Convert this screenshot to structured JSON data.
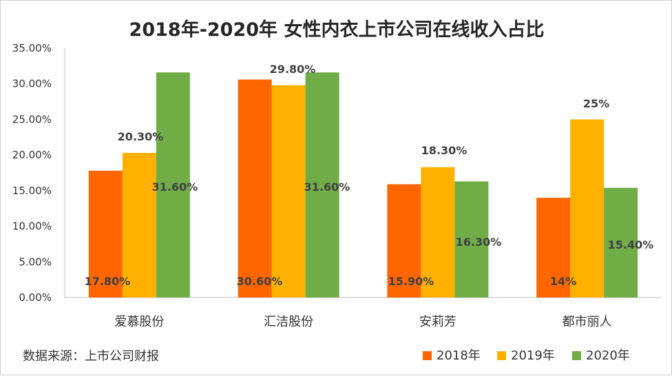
{
  "source_note": "数据来源：上市公司财报",
  "colors": {
    "2018年": "#FF6600",
    "2019年": "#FFB000",
    "2020年": "#70AD47"
  },
  "chart_data": {
    "type": "bar",
    "title": "2018年-2020年 女性内衣上市公司在线收入占比",
    "categories": [
      "爱慕股份",
      "汇洁股份",
      "安莉芳",
      "都市丽人"
    ],
    "series": [
      {
        "name": "2018年",
        "values": [
          17.8,
          30.6,
          15.9,
          14
        ],
        "labels": [
          "17.80%",
          "30.60%",
          "15.90%",
          "14%"
        ]
      },
      {
        "name": "2019年",
        "values": [
          20.3,
          29.8,
          18.3,
          25
        ],
        "labels": [
          "20.30%",
          "29.80%",
          "18.30%",
          "25%"
        ]
      },
      {
        "name": "2020年",
        "values": [
          31.6,
          31.6,
          16.3,
          15.4
        ],
        "labels": [
          "31.60%",
          "31.60%",
          "16.30%",
          "15.40%"
        ]
      }
    ],
    "ylim": [
      0,
      35
    ],
    "yticks": [
      "0.00%",
      "5.00%",
      "10.00%",
      "15.00%",
      "20.00%",
      "25.00%",
      "30.00%",
      "35.00%"
    ],
    "legend_position": "bottom-right",
    "grid": false
  }
}
